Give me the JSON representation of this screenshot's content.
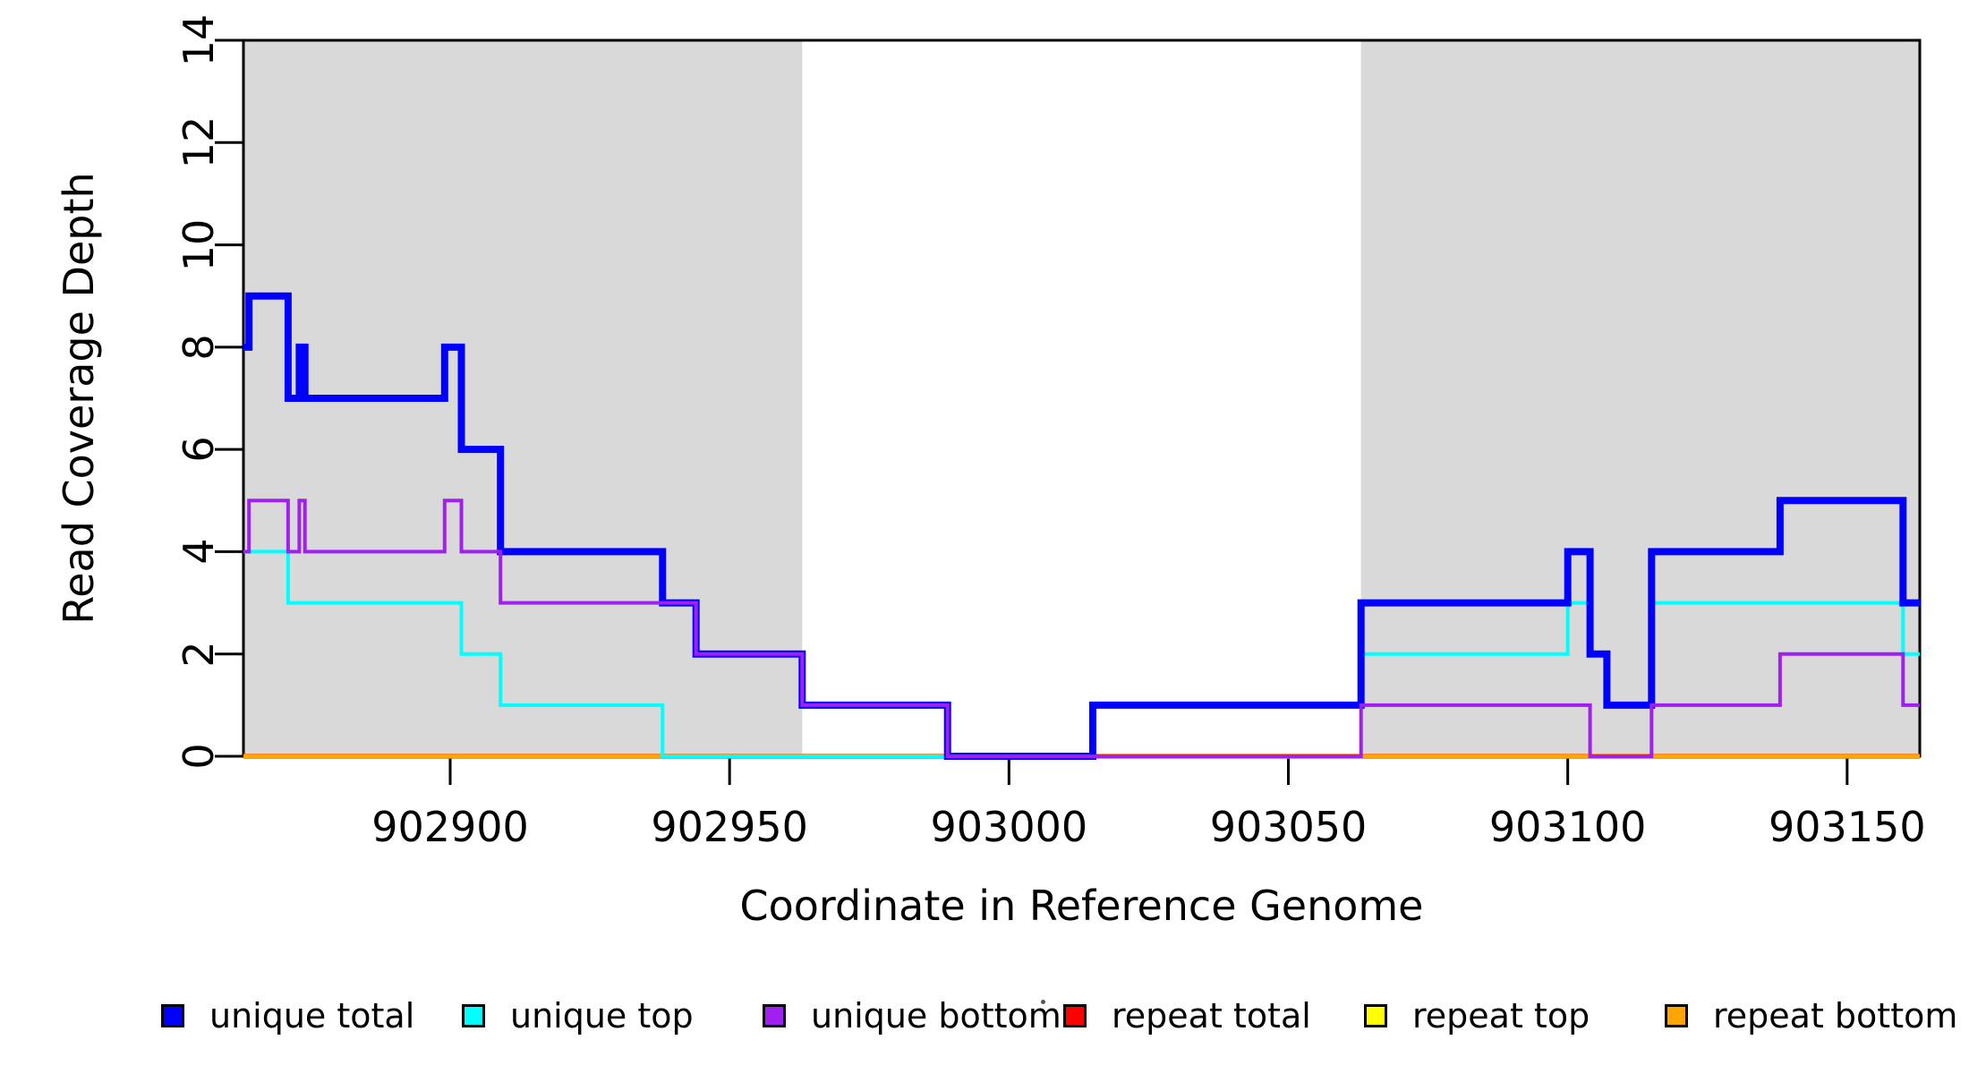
{
  "figure": {
    "background": "#ffffff",
    "axis_color": "#000000",
    "shade_color": "#d9d9d9"
  },
  "chart_data": {
    "type": "line",
    "line_style": "step",
    "title": "",
    "xlabel": "Coordinate in Reference Genome",
    "ylabel": "Read Coverage Depth",
    "xlim": [
      902863,
      903163
    ],
    "ylim": [
      0,
      14
    ],
    "x_ticks": [
      902900,
      902950,
      903000,
      903050,
      903100,
      903150
    ],
    "y_ticks": [
      0,
      2,
      4,
      6,
      8,
      10,
      12,
      14
    ],
    "grid": false,
    "legend_position": "bottom",
    "shaded_regions": [
      {
        "x0": 902863,
        "x1": 902963,
        "color": "#d9d9d9"
      },
      {
        "x0": 903063,
        "x1": 903163,
        "color": "#d9d9d9"
      }
    ],
    "series": [
      {
        "name": "repeat total",
        "color": "#ff0000",
        "width": 5.5,
        "steps": [
          [
            902863,
            0
          ]
        ]
      },
      {
        "name": "repeat top",
        "color": "#ffff00",
        "width": 4.5,
        "steps": [
          [
            902863,
            0
          ]
        ]
      },
      {
        "name": "repeat bottom",
        "color": "#ffa500",
        "width": 5,
        "steps": [
          [
            902863,
            0
          ]
        ]
      },
      {
        "name": "unique top",
        "color": "#00ffff",
        "width": 4,
        "steps": [
          [
            902863,
            4
          ],
          [
            902871,
            3
          ],
          [
            902902,
            2
          ],
          [
            902909,
            1
          ],
          [
            902938,
            0
          ],
          [
            903015,
            1
          ],
          [
            903063,
            2
          ],
          [
            903100,
            3
          ],
          [
            903104,
            2
          ],
          [
            903107,
            1
          ],
          [
            903115,
            3
          ],
          [
            903160,
            2
          ]
        ]
      },
      {
        "name": "unique total",
        "color": "#0000ff",
        "width": 8,
        "steps": [
          [
            902863,
            8
          ],
          [
            902864,
            9
          ],
          [
            902871,
            7
          ],
          [
            902873,
            8
          ],
          [
            902874,
            7
          ],
          [
            902899,
            8
          ],
          [
            902902,
            6
          ],
          [
            902909,
            4
          ],
          [
            902938,
            3
          ],
          [
            902944,
            2
          ],
          [
            902963,
            1
          ],
          [
            902989,
            0
          ],
          [
            903015,
            1
          ],
          [
            903063,
            3
          ],
          [
            903100,
            4
          ],
          [
            903104,
            2
          ],
          [
            903107,
            1
          ],
          [
            903115,
            4
          ],
          [
            903138,
            5
          ],
          [
            903160,
            3
          ]
        ]
      },
      {
        "name": "unique bottom",
        "color": "#a020f0",
        "width": 4,
        "steps": [
          [
            902863,
            4
          ],
          [
            902864,
            5
          ],
          [
            902871,
            4
          ],
          [
            902873,
            5
          ],
          [
            902874,
            4
          ],
          [
            902899,
            5
          ],
          [
            902902,
            4
          ],
          [
            902909,
            3
          ],
          [
            902944,
            2
          ],
          [
            902963,
            1
          ],
          [
            902989,
            0
          ],
          [
            903063,
            1
          ],
          [
            903104,
            0
          ],
          [
            903115,
            1
          ],
          [
            903138,
            2
          ],
          [
            903160,
            1
          ]
        ]
      }
    ],
    "legend": {
      "items": [
        {
          "label": "unique total",
          "color": "#0000ff"
        },
        {
          "label": "unique top",
          "color": "#00ffff"
        },
        {
          "label": "unique bottom",
          "color": "#a020f0"
        },
        {
          "label": "repeat total",
          "color": "#ff0000"
        },
        {
          "label": "repeat top",
          "color": "#ffff00"
        },
        {
          "label": "repeat bottom",
          "color": "#ffa500"
        }
      ]
    }
  }
}
